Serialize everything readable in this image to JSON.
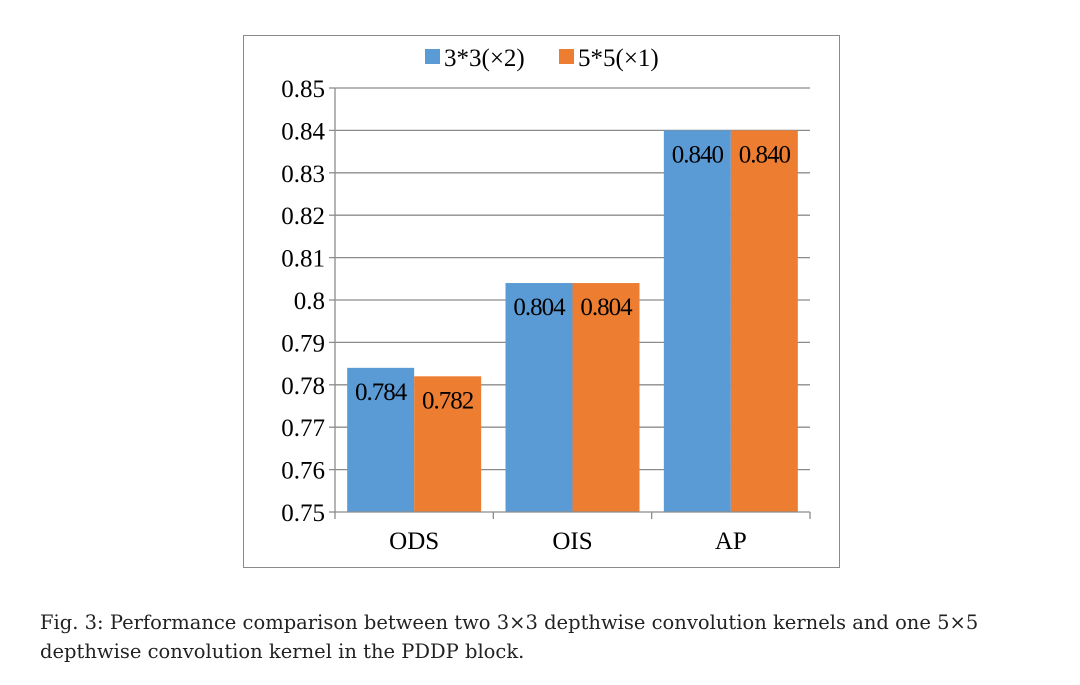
{
  "chart_data": {
    "type": "bar",
    "categories": [
      "ODS",
      "OIS",
      "AP"
    ],
    "series": [
      {
        "name": "3*3(×2)",
        "values": [
          0.784,
          0.804,
          0.84
        ],
        "labels": [
          "0.784",
          "0.804",
          "0.840"
        ],
        "color": "#5B9BD5"
      },
      {
        "name": "5*5(×1)",
        "values": [
          0.782,
          0.804,
          0.84
        ],
        "labels": [
          "0.782",
          "0.804",
          "0.840"
        ],
        "color": "#ED7D31"
      }
    ],
    "title": "",
    "xlabel": "",
    "ylabel": "",
    "ylim": [
      0.75,
      0.85
    ],
    "yticks": [
      0.75,
      0.76,
      0.77,
      0.78,
      0.79,
      0.8,
      0.81,
      0.82,
      0.83,
      0.84,
      0.85
    ],
    "ytick_labels": [
      "0.75",
      "0.76",
      "0.77",
      "0.78",
      "0.79",
      "0.8",
      "0.81",
      "0.82",
      "0.83",
      "0.84",
      "0.85"
    ],
    "grid": true,
    "legend_position": "top"
  },
  "caption": {
    "line1": "Fig. 3: Performance comparison between two 3×3 depthwise convolution kernels and one 5×5",
    "line2": "depthwise convolution kernel in the PDDP block."
  }
}
